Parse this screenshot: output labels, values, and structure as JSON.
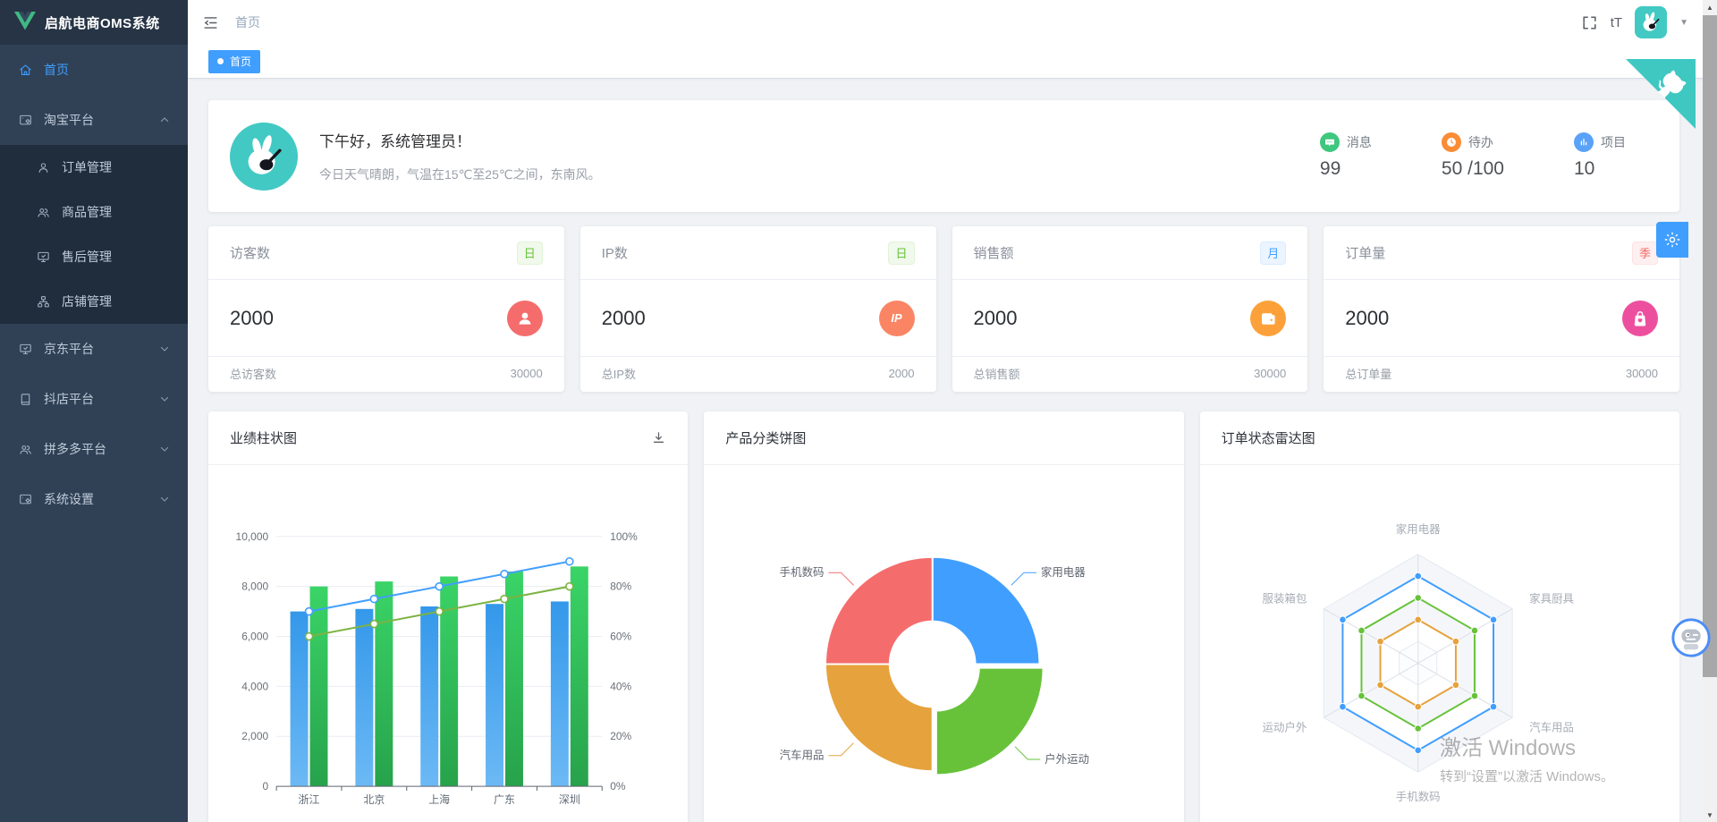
{
  "app": {
    "title": "启航电商OMS系统"
  },
  "sidebar": {
    "items": [
      {
        "label": "首页",
        "icon": "home-icon",
        "active": true,
        "type": "item"
      },
      {
        "label": "淘宝平台",
        "icon": "taobao-platform-icon",
        "type": "group",
        "expanded": true,
        "children": [
          {
            "label": "订单管理",
            "icon": "order-icon"
          },
          {
            "label": "商品管理",
            "icon": "goods-icon"
          },
          {
            "label": "售后管理",
            "icon": "aftersale-icon"
          },
          {
            "label": "店铺管理",
            "icon": "shop-icon"
          }
        ]
      },
      {
        "label": "京东平台",
        "icon": "jd-platform-icon",
        "type": "group",
        "expanded": false
      },
      {
        "label": "抖店平台",
        "icon": "douyin-platform-icon",
        "type": "group",
        "expanded": false
      },
      {
        "label": "拼多多平台",
        "icon": "pdd-platform-icon",
        "type": "group",
        "expanded": false
      },
      {
        "label": "系统设置",
        "icon": "system-settings-icon",
        "type": "group",
        "expanded": false
      }
    ]
  },
  "header": {
    "breadcrumb": "首页",
    "font_icon": "tT"
  },
  "tabs": [
    {
      "label": "首页",
      "active": true
    }
  ],
  "welcome": {
    "greeting": "下午好，系统管理员！",
    "weather": "今日天气晴朗，气温在15℃至25℃之间，东南风。",
    "stats": [
      {
        "label": "消息",
        "value": "99",
        "icon": "message-icon",
        "color": "#3fc77e"
      },
      {
        "label": "待办",
        "value": "50 /100",
        "icon": "todo-icon",
        "color": "#fa8c35"
      },
      {
        "label": "项目",
        "value": "10",
        "icon": "project-icon",
        "color": "#5aa2f8"
      }
    ]
  },
  "stat_cards": [
    {
      "title": "访客数",
      "badge": "日",
      "badge_style": "green",
      "value": "2000",
      "icon": "visitor-icon",
      "icon_color": "#f56c6c",
      "footer_label": "总访客数",
      "footer_value": "30000"
    },
    {
      "title": "IP数",
      "badge": "日",
      "badge_style": "green",
      "value": "2000",
      "icon": "ip-icon",
      "icon_color": "#fa8564",
      "footer_label": "总IP数",
      "footer_value": "2000"
    },
    {
      "title": "销售额",
      "badge": "月",
      "badge_style": "blue",
      "value": "2000",
      "icon": "wallet-icon",
      "icon_color": "#fca13a",
      "footer_label": "总销售额",
      "footer_value": "30000"
    },
    {
      "title": "订单量",
      "badge": "季",
      "badge_style": "red",
      "value": "2000",
      "icon": "bag-icon",
      "icon_color": "#ed4f9f",
      "footer_label": "总订单量",
      "footer_value": "30000"
    }
  ],
  "chart_data": [
    {
      "type": "bar",
      "title": "业绩柱状图",
      "categories": [
        "浙江",
        "北京",
        "上海",
        "广东",
        "深圳"
      ],
      "series": [
        {
          "name": "bar-blue",
          "kind": "bar",
          "values": [
            7000,
            7100,
            7200,
            7300,
            7400
          ],
          "color_top": "#3498ea",
          "color_bottom": "#6cb9f5"
        },
        {
          "name": "bar-green",
          "kind": "bar",
          "values": [
            8000,
            8200,
            8400,
            8600,
            8800
          ],
          "color_top": "#3ad467",
          "color_bottom": "#27a24b"
        },
        {
          "name": "line-blue",
          "kind": "line",
          "axis": "right",
          "values": [
            70,
            75,
            80,
            85,
            90
          ],
          "color": "#409eff"
        },
        {
          "name": "line-green",
          "kind": "line",
          "axis": "right",
          "values": [
            60,
            65,
            70,
            75,
            80
          ],
          "color": "#7cb342"
        }
      ],
      "left_axis": {
        "min": 0,
        "max": 10000,
        "ticks": [
          "0",
          "2,000",
          "4,000",
          "6,000",
          "8,000",
          "10,000"
        ]
      },
      "right_axis": {
        "min": 0,
        "max": 100,
        "ticks": [
          "0%",
          "20%",
          "40%",
          "60%",
          "80%",
          "100%"
        ]
      },
      "grid": true,
      "legend": "none"
    },
    {
      "type": "pie",
      "title": "产品分类饼图",
      "donut": true,
      "slices": [
        {
          "label": "家用电器",
          "value": 25,
          "color": "#409eff",
          "selected": false
        },
        {
          "label": "户外运动",
          "value": 25,
          "color": "#67c23a",
          "selected": true
        },
        {
          "label": "汽车用品",
          "value": 25,
          "color": "#e6a23c",
          "selected": false
        },
        {
          "label": "手机数码",
          "value": 25,
          "color": "#f56c6c",
          "selected": false
        }
      ]
    },
    {
      "type": "radar",
      "title": "订单状态雷达图",
      "axes": [
        "家用电器",
        "家具厨具",
        "汽车用品",
        "手机数码",
        "运动户外",
        "服装箱包"
      ],
      "max": 100,
      "series": [
        {
          "name": "blue",
          "values": [
            80,
            80,
            80,
            80,
            80,
            80
          ],
          "color": "#409eff"
        },
        {
          "name": "green",
          "values": [
            60,
            60,
            60,
            60,
            60,
            60
          ],
          "color": "#67c23a"
        },
        {
          "name": "orange",
          "values": [
            40,
            40,
            40,
            40,
            40,
            40
          ],
          "color": "#e6a23c"
        }
      ]
    }
  ],
  "watermark": {
    "line1": "激活 Windows",
    "line2": "转到“设置”以激活 Windows。"
  },
  "colors": {
    "accent": "#409eff",
    "sidebar_bg": "#304156",
    "submenu_bg": "#1f2d3d",
    "teal": "#42c9c3"
  }
}
